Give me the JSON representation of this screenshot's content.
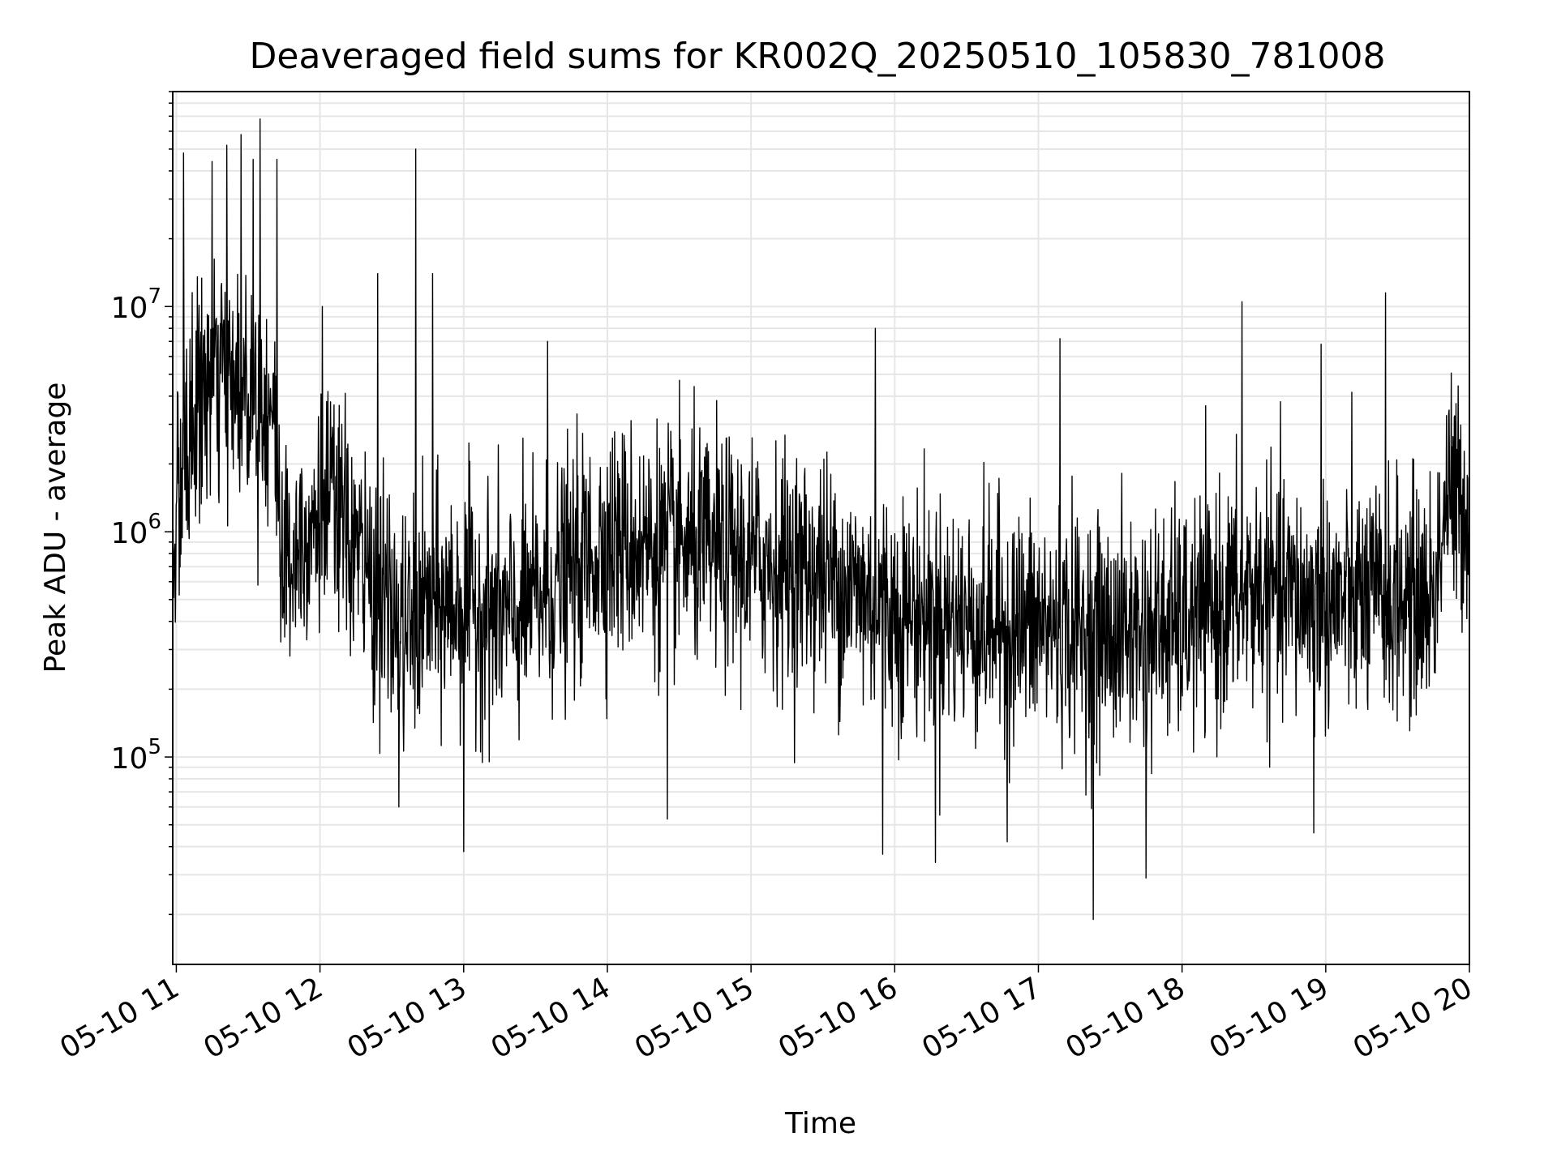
{
  "chart_data": {
    "type": "line",
    "title": "Deaveraged field sums for KR002Q_20250510_105830_781008",
    "xlabel": "Time",
    "ylabel": "Peak ADU - average",
    "x_range": [
      "2025-05-10T10:58:30",
      "2025-05-10T20:00:00"
    ],
    "x_ticks": [
      {
        "time": "2025-05-10T11:00:00",
        "label": "05-10 11"
      },
      {
        "time": "2025-05-10T12:00:00",
        "label": "05-10 12"
      },
      {
        "time": "2025-05-10T13:00:00",
        "label": "05-10 13"
      },
      {
        "time": "2025-05-10T14:00:00",
        "label": "05-10 14"
      },
      {
        "time": "2025-05-10T15:00:00",
        "label": "05-10 15"
      },
      {
        "time": "2025-05-10T16:00:00",
        "label": "05-10 16"
      },
      {
        "time": "2025-05-10T17:00:00",
        "label": "05-10 17"
      },
      {
        "time": "2025-05-10T18:00:00",
        "label": "05-10 18"
      },
      {
        "time": "2025-05-10T19:00:00",
        "label": "05-10 19"
      },
      {
        "time": "2025-05-10T20:00:00",
        "label": "05-10 20"
      }
    ],
    "y_scale": "log",
    "ylim": [
      12000,
      90000000
    ],
    "y_ticks": [
      {
        "value": 100000,
        "base": "10",
        "exp": "5"
      },
      {
        "value": 1000000,
        "base": "10",
        "exp": "6"
      },
      {
        "value": 10000000,
        "base": "10",
        "exp": "7"
      }
    ],
    "grid": true,
    "line_color": "#000000",
    "grid_color": "#e6e6e6",
    "series": [
      {
        "points": [
          [
            "2025-05-10T10:58:30",
            900000
          ],
          [
            "2025-05-10T11:04:00",
            2200000
          ],
          [
            "2025-05-10T11:10:00",
            4000000
          ],
          [
            "2025-05-10T11:20:00",
            5000000
          ],
          [
            "2025-05-10T11:30:00",
            4500000
          ],
          [
            "2025-05-10T11:40:00",
            3500000
          ],
          [
            "2025-05-10T11:45:00",
            700000
          ],
          [
            "2025-05-10T11:55:00",
            1100000
          ],
          [
            "2025-05-10T12:05:00",
            1300000
          ],
          [
            "2025-05-10T12:20:00",
            650000
          ],
          [
            "2025-05-10T12:35:00",
            350000
          ],
          [
            "2025-05-10T12:45:00",
            450000
          ],
          [
            "2025-05-10T13:00:00",
            500000
          ],
          [
            "2025-05-10T13:20:00",
            400000
          ],
          [
            "2025-05-10T13:40:00",
            600000
          ],
          [
            "2025-05-10T14:00:00",
            900000
          ],
          [
            "2025-05-10T14:30:00",
            850000
          ],
          [
            "2025-05-10T15:00:00",
            750000
          ],
          [
            "2025-05-10T15:30:00",
            650000
          ],
          [
            "2025-05-10T16:00:00",
            450000
          ],
          [
            "2025-05-10T16:30:00",
            400000
          ],
          [
            "2025-05-10T17:00:00",
            380000
          ],
          [
            "2025-05-10T17:30:00",
            350000
          ],
          [
            "2025-05-10T18:00:00",
            380000
          ],
          [
            "2025-05-10T18:30:00",
            550000
          ],
          [
            "2025-05-10T19:00:00",
            480000
          ],
          [
            "2025-05-10T19:30:00",
            500000
          ],
          [
            "2025-05-10T19:45:00",
            500000
          ],
          [
            "2025-05-10T19:50:00",
            1400000
          ],
          [
            "2025-05-10T20:00:00",
            1300000
          ]
        ]
      }
    ],
    "peaks": [
      [
        "2025-05-10T11:03:00",
        48000000
      ],
      [
        "2025-05-10T11:15:00",
        44000000
      ],
      [
        "2025-05-10T11:21:00",
        52000000
      ],
      [
        "2025-05-10T11:27:00",
        58000000
      ],
      [
        "2025-05-10T11:32:00",
        45000000
      ],
      [
        "2025-05-10T11:35:00",
        68000000
      ],
      [
        "2025-05-10T11:42:00",
        45000000
      ],
      [
        "2025-05-10T12:01:00",
        10000000
      ],
      [
        "2025-05-10T12:24:00",
        14000000
      ],
      [
        "2025-05-10T12:40:00",
        50000000
      ],
      [
        "2025-05-10T12:47:00",
        14000000
      ],
      [
        "2025-05-10T13:35:00",
        7000000
      ],
      [
        "2025-05-10T15:52:00",
        8000000
      ],
      [
        "2025-05-10T17:09:00",
        7200000
      ],
      [
        "2025-05-10T18:25:00",
        10500000
      ],
      [
        "2025-05-10T18:58:00",
        6800000
      ],
      [
        "2025-05-10T19:25:00",
        11500000
      ]
    ],
    "troughs": [
      [
        "2025-05-10T12:33:00",
        60000
      ],
      [
        "2025-05-10T13:00:00",
        38000
      ],
      [
        "2025-05-10T14:25:00",
        53000
      ],
      [
        "2025-05-10T15:55:00",
        37000
      ],
      [
        "2025-05-10T16:17:00",
        34000
      ],
      [
        "2025-05-10T16:47:00",
        42000
      ],
      [
        "2025-05-10T17:23:00",
        19000
      ],
      [
        "2025-05-10T17:45:00",
        29000
      ],
      [
        "2025-05-10T18:55:00",
        46000
      ]
    ]
  }
}
